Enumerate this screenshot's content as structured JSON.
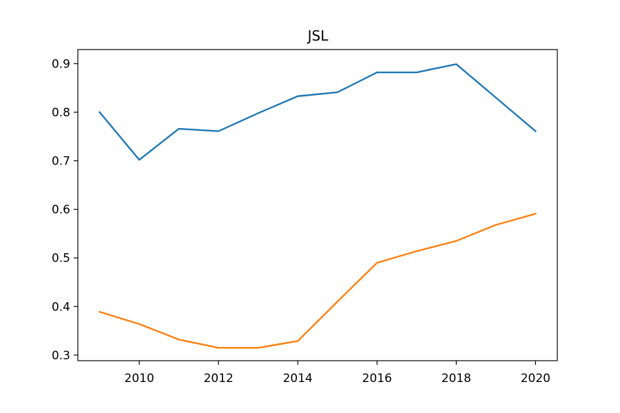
{
  "chart_data": {
    "type": "line",
    "title": "JSL",
    "xlabel": "",
    "ylabel": "",
    "xlim": [
      2008.45,
      2020.55
    ],
    "ylim": [
      0.2885,
      0.929
    ],
    "xticks": [
      2010,
      2012,
      2014,
      2016,
      2018,
      2020
    ],
    "xtick_labels": [
      "2010",
      "2012",
      "2014",
      "2016",
      "2018",
      "2020"
    ],
    "yticks": [
      0.3,
      0.4,
      0.5,
      0.6,
      0.7,
      0.8,
      0.9
    ],
    "ytick_labels": [
      "0.3",
      "0.4",
      "0.5",
      "0.6",
      "0.7",
      "0.8",
      "0.9"
    ],
    "grid": false,
    "x": [
      2009,
      2010,
      2011,
      2012,
      2013,
      2014,
      2015,
      2016,
      2017,
      2018,
      2019,
      2020
    ],
    "series": [
      {
        "color": "#1f77b4",
        "values": [
          0.8,
          0.702,
          0.766,
          0.761,
          0.798,
          0.833,
          0.841,
          0.882,
          0.882,
          0.899,
          0.83,
          0.761
        ]
      },
      {
        "color": "#ff7f0e",
        "values": [
          0.389,
          0.364,
          0.332,
          0.315,
          0.315,
          0.329,
          0.41,
          0.49,
          0.514,
          0.535,
          0.568,
          0.591
        ]
      }
    ]
  }
}
